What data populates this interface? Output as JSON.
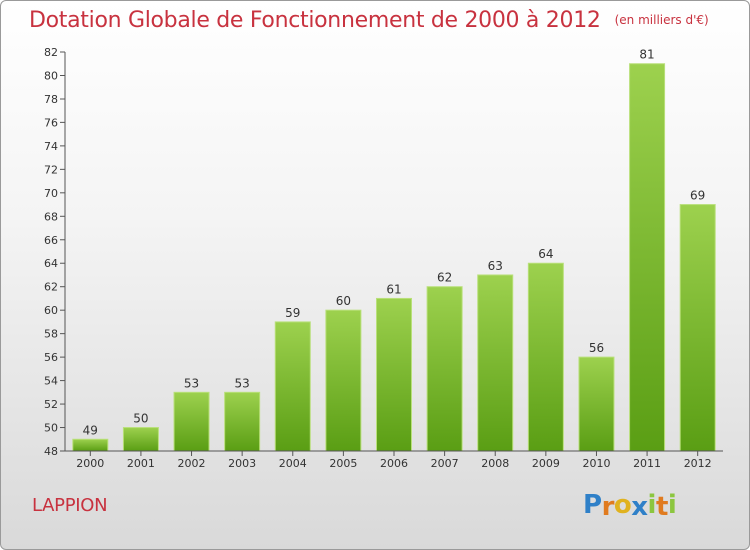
{
  "title": "Dotation Globale de Fonctionnement de 2000 à 2012",
  "subtitle": "(en milliers d'€)",
  "commune": "LAPPION",
  "logo": {
    "letters": [
      {
        "ch": "P",
        "color": "#2f80c8"
      },
      {
        "ch": "r",
        "color": "#e07b1f"
      },
      {
        "ch": "o",
        "color": "#e0b21f"
      },
      {
        "ch": "x",
        "color": "#2f80c8"
      },
      {
        "ch": "i",
        "color": "#8cc63f"
      },
      {
        "ch": "t",
        "color": "#e07b1f"
      },
      {
        "ch": "i",
        "color": "#8cc63f"
      }
    ]
  },
  "chart_data": {
    "type": "bar",
    "categories": [
      "2000",
      "2001",
      "2002",
      "2003",
      "2004",
      "2005",
      "2006",
      "2007",
      "2008",
      "2009",
      "2010",
      "2011",
      "2012"
    ],
    "values": [
      49,
      50,
      53,
      53,
      59,
      60,
      61,
      62,
      63,
      64,
      56,
      81,
      69
    ],
    "title": "Dotation Globale de Fonctionnement de 2000 à 2012",
    "ylabel": "",
    "xlabel": "",
    "ylim": [
      48,
      82
    ],
    "yticks": [
      48,
      50,
      52,
      54,
      56,
      58,
      60,
      62,
      64,
      66,
      68,
      70,
      72,
      74,
      76,
      78,
      80,
      82
    ],
    "grid": false,
    "bar_color_top": "#9dd14e",
    "bar_color_bottom": "#5a9e14"
  }
}
